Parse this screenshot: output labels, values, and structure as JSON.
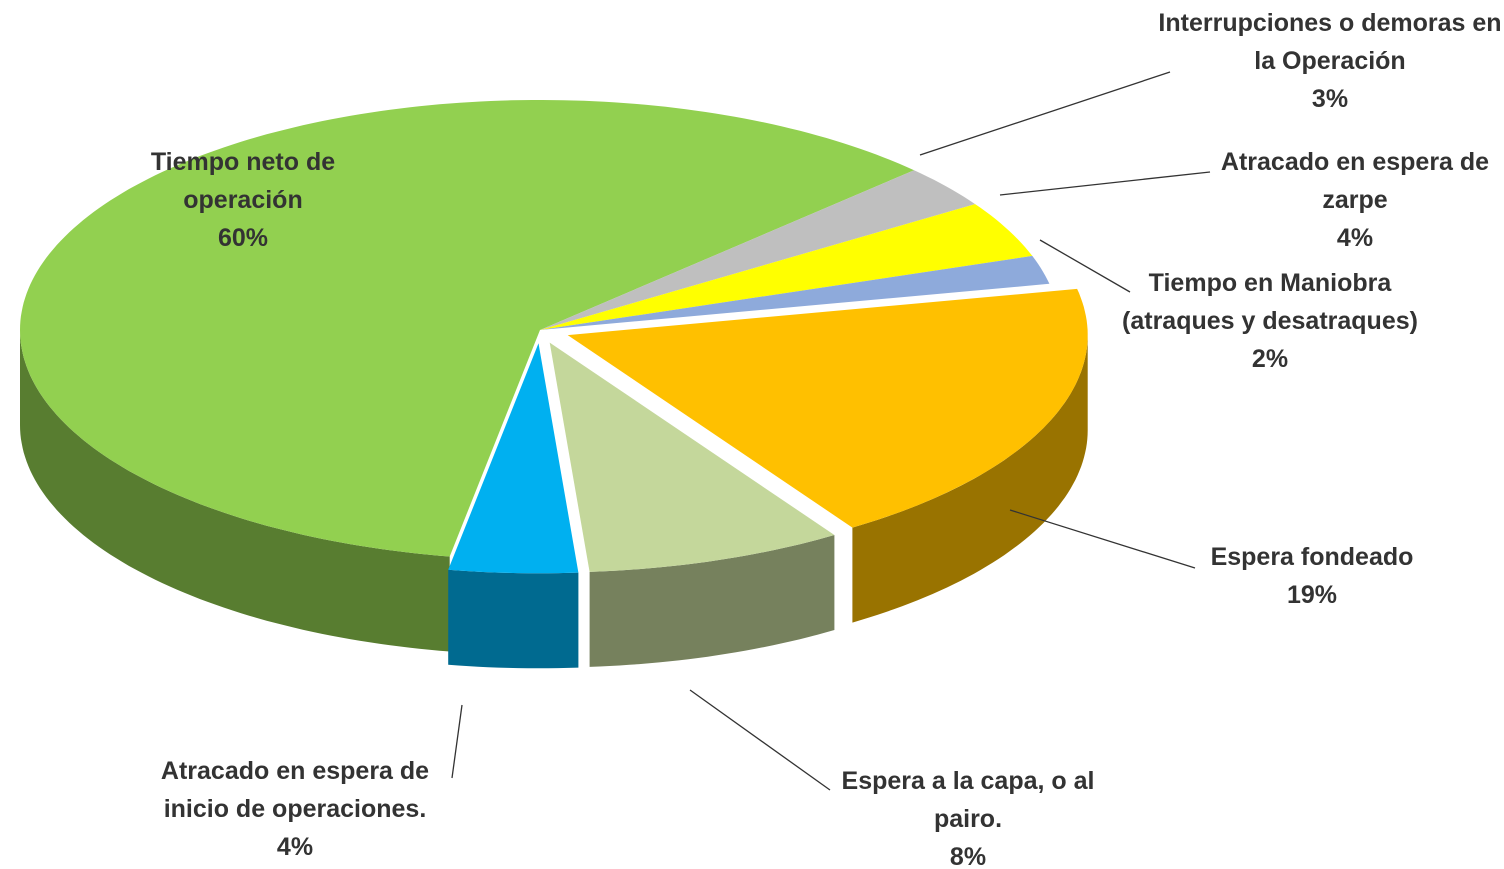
{
  "chart_data": {
    "type": "pie",
    "categories": [
      "Tiempo neto de operación",
      "Interrupciones o demoras en la Operación",
      "Atracado en espera de zarpe",
      "Tiempo en Maniobra (atraques y desatraques)",
      "Espera fondeado",
      "Espera a la capa, o al pairo.",
      "Atracado en espera de inicio de operaciones."
    ],
    "values": [
      60,
      3,
      4,
      2,
      19,
      8,
      4
    ],
    "value_labels": [
      "60%",
      "3%",
      "4%",
      "2%",
      "19%",
      "8%",
      "4%"
    ],
    "colors": [
      "#92d050",
      "#bfbfbf",
      "#ffff00",
      "#8eaadb",
      "#ffc000",
      "#c4d79b",
      "#00b0f0"
    ]
  }
}
